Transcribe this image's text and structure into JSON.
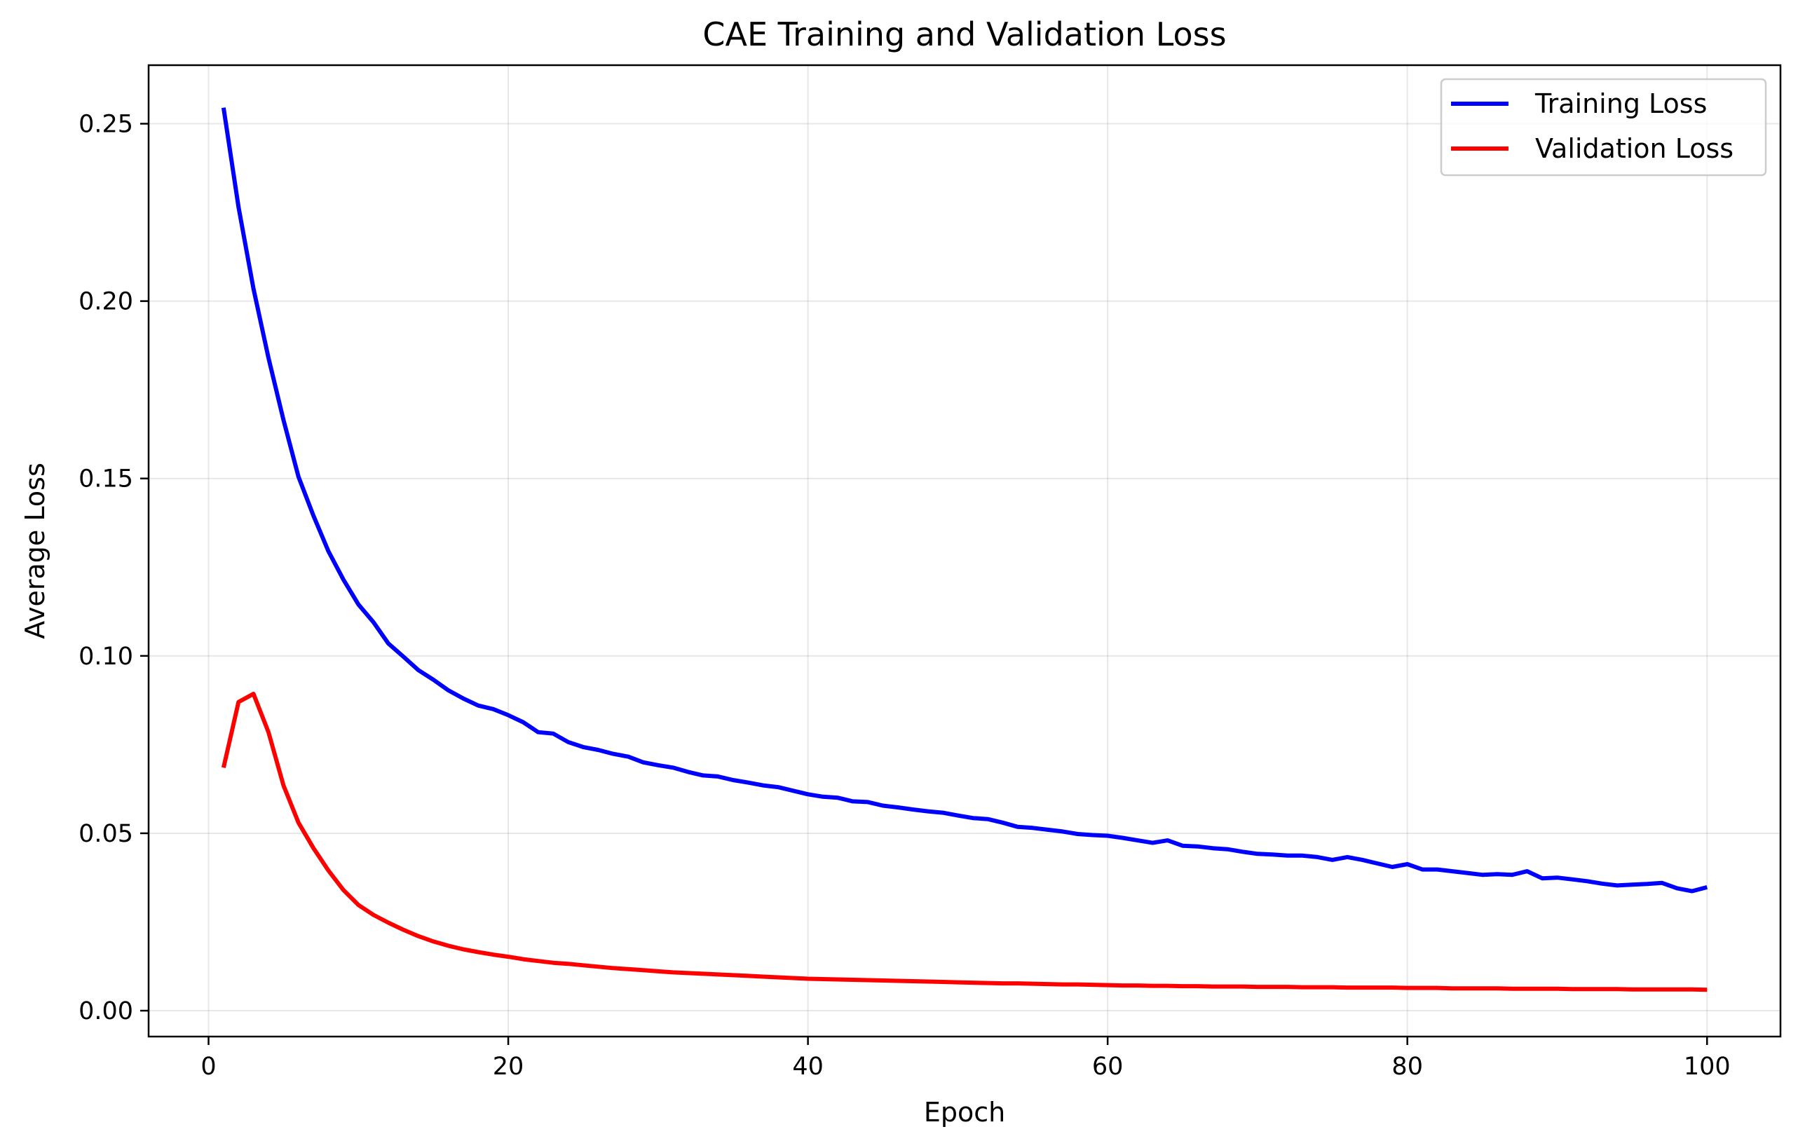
{
  "chart_data": {
    "type": "line",
    "title": "CAE Training and Validation Loss",
    "xlabel": "Epoch",
    "ylabel": "Average Loss",
    "xlim": [
      -4,
      104.9
    ],
    "ylim": [
      -0.0073,
      0.2665
    ],
    "xticks": [
      0,
      20,
      40,
      60,
      80,
      100
    ],
    "xtick_labels": [
      "0",
      "20",
      "40",
      "60",
      "80",
      "100"
    ],
    "yticks": [
      0.0,
      0.05,
      0.1,
      0.15,
      0.2,
      0.25
    ],
    "ytick_labels": [
      "0.00",
      "0.05",
      "0.10",
      "0.15",
      "0.20",
      "0.25"
    ],
    "grid": true,
    "legend_position": "top-right",
    "x": [
      1,
      2,
      3,
      4,
      5,
      6,
      7,
      8,
      9,
      10,
      11,
      12,
      13,
      14,
      15,
      16,
      17,
      18,
      19,
      20,
      21,
      22,
      23,
      24,
      25,
      26,
      27,
      28,
      29,
      30,
      31,
      32,
      33,
      34,
      35,
      36,
      37,
      38,
      39,
      40,
      41,
      42,
      43,
      44,
      45,
      46,
      47,
      48,
      49,
      50,
      51,
      52,
      53,
      54,
      55,
      56,
      57,
      58,
      59,
      60,
      61,
      62,
      63,
      64,
      65,
      66,
      67,
      68,
      69,
      70,
      71,
      72,
      73,
      74,
      75,
      76,
      77,
      78,
      79,
      80,
      81,
      82,
      83,
      84,
      85,
      86,
      87,
      88,
      89,
      90,
      91,
      92,
      93,
      94,
      95,
      96,
      97,
      98,
      99,
      100
    ],
    "series": [
      {
        "name": "Training Loss",
        "color": "#0000ff",
        "values": [
          0.2545,
          0.2265,
          0.2035,
          0.184,
          0.1665,
          0.1505,
          0.1395,
          0.1295,
          0.1215,
          0.1145,
          0.1095,
          0.1035,
          0.0998,
          0.096,
          0.0933,
          0.0903,
          0.088,
          0.086,
          0.085,
          0.0833,
          0.0813,
          0.0785,
          0.0781,
          0.0757,
          0.0743,
          0.0735,
          0.0724,
          0.0716,
          0.07,
          0.0692,
          0.0685,
          0.0673,
          0.0663,
          0.066,
          0.065,
          0.0643,
          0.0635,
          0.063,
          0.062,
          0.061,
          0.0603,
          0.06,
          0.059,
          0.0588,
          0.0578,
          0.0573,
          0.0567,
          0.0562,
          0.0558,
          0.055,
          0.0543,
          0.054,
          0.053,
          0.0518,
          0.0515,
          0.051,
          0.0505,
          0.0498,
          0.0495,
          0.0493,
          0.0487,
          0.048,
          0.0473,
          0.048,
          0.0465,
          0.0463,
          0.0458,
          0.0455,
          0.0448,
          0.0442,
          0.044,
          0.0437,
          0.0437,
          0.0433,
          0.0425,
          0.0433,
          0.0425,
          0.0415,
          0.0405,
          0.0413,
          0.0398,
          0.0398,
          0.0393,
          0.0388,
          0.0383,
          0.0385,
          0.0383,
          0.0393,
          0.0373,
          0.0375,
          0.037,
          0.0365,
          0.0358,
          0.0353,
          0.0355,
          0.0357,
          0.036,
          0.0345,
          0.0337,
          0.0348
        ]
      },
      {
        "name": "Validation Loss",
        "color": "#ff0000",
        "values": [
          0.0685,
          0.087,
          0.0893,
          0.0785,
          0.0635,
          0.053,
          0.0458,
          0.0395,
          0.034,
          0.0298,
          0.027,
          0.0248,
          0.0228,
          0.021,
          0.0195,
          0.0183,
          0.0173,
          0.0165,
          0.0158,
          0.0152,
          0.0145,
          0.014,
          0.0135,
          0.0132,
          0.0128,
          0.0124,
          0.012,
          0.0117,
          0.0114,
          0.0111,
          0.0108,
          0.0106,
          0.0104,
          0.0102,
          0.01,
          0.0098,
          0.0096,
          0.0094,
          0.0092,
          0.009,
          0.0089,
          0.0088,
          0.0087,
          0.0086,
          0.0085,
          0.0084,
          0.0083,
          0.0082,
          0.0081,
          0.008,
          0.0079,
          0.0078,
          0.0077,
          0.0077,
          0.0076,
          0.0075,
          0.0074,
          0.0074,
          0.0073,
          0.0072,
          0.0071,
          0.0071,
          0.007,
          0.007,
          0.0069,
          0.0069,
          0.0068,
          0.0068,
          0.0068,
          0.0067,
          0.0067,
          0.0067,
          0.0066,
          0.0066,
          0.0066,
          0.0065,
          0.0065,
          0.0065,
          0.0065,
          0.0064,
          0.0064,
          0.0064,
          0.0063,
          0.0063,
          0.0063,
          0.0063,
          0.0062,
          0.0062,
          0.0062,
          0.0062,
          0.0061,
          0.0061,
          0.0061,
          0.0061,
          0.006,
          0.006,
          0.006,
          0.006,
          0.006,
          0.0059
        ]
      }
    ]
  }
}
